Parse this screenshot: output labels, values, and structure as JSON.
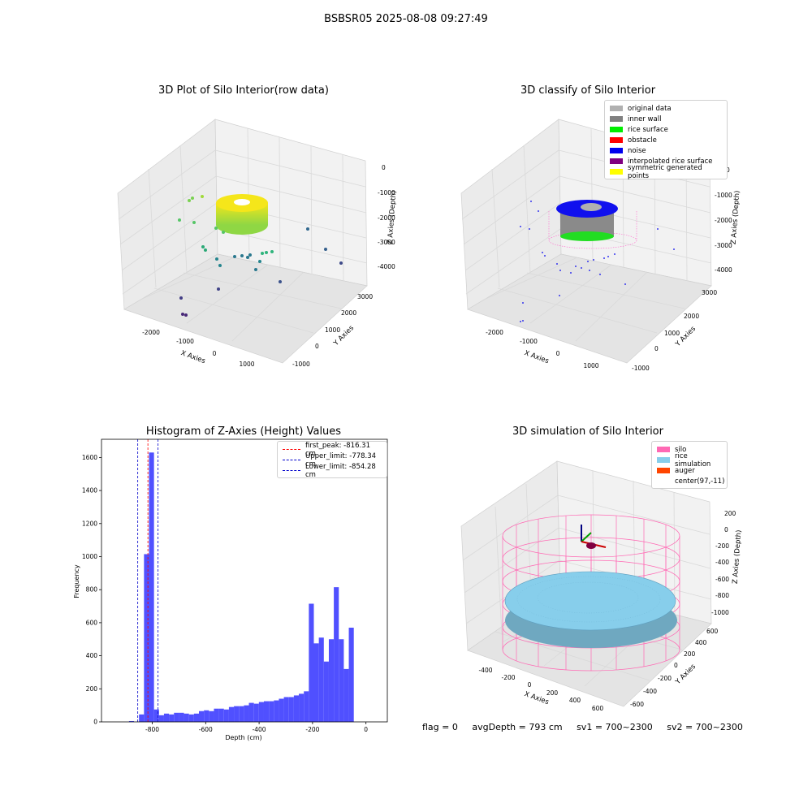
{
  "suptitle": "BSBSR05 2025-08-08 09:27:49",
  "colors": {
    "hist_bar": "#5050ff",
    "peak_line": "#ff0000",
    "limit_line": "#0000cc",
    "pane_wall": "#ebebeb",
    "pane_grid": "#d9d9d9"
  },
  "charts": {
    "raw": {
      "title": "3D Plot of Silo Interior(row data)",
      "xlabel": "X Axies",
      "ylabel": "Y Axies",
      "zlabel": "Z Axies (Depth)",
      "x_ticks": [
        "-2000",
        "-1000",
        "0",
        "1000"
      ],
      "y_ticks": [
        "-1000",
        "0",
        "1000",
        "2000",
        "3000"
      ],
      "z_ticks": [
        "0",
        "-1000",
        "-2000",
        "-3000",
        "-4000"
      ]
    },
    "classify": {
      "title": "3D classify of Silo Interior",
      "xlabel": "X Axies",
      "ylabel": "Y Axies",
      "zlabel": "Z Axies (Depth)",
      "x_ticks": [
        "-2000",
        "-1000",
        "0",
        "1000"
      ],
      "y_ticks": [
        "-1000",
        "0",
        "1000",
        "2000",
        "3000"
      ],
      "z_ticks": [
        "0",
        "-1000",
        "-2000",
        "-3000",
        "-4000"
      ],
      "legend": [
        {
          "label": "original data",
          "color": "#b0b0b0"
        },
        {
          "label": "inner wall",
          "color": "#808080"
        },
        {
          "label": "rice surface",
          "color": "#00ee00"
        },
        {
          "label": "obstacle",
          "color": "#ff0000"
        },
        {
          "label": "noise",
          "color": "#0000ee"
        },
        {
          "label": "interpolated rice surface",
          "color": "#800080"
        },
        {
          "label": "symmetric generated points",
          "color": "#ffff00"
        }
      ]
    },
    "simulation": {
      "title": "3D simulation of Silo Interior",
      "xlabel": "X Axies",
      "ylabel": "Y Axies",
      "zlabel": "Z Axies (Depth)",
      "x_ticks": [
        "-400",
        "-200",
        "0",
        "200",
        "400",
        "600"
      ],
      "y_ticks": [
        "-600",
        "-400",
        "-200",
        "0",
        "200",
        "400",
        "600"
      ],
      "z_ticks": [
        "200",
        "0",
        "-200",
        "-400",
        "-600",
        "-800",
        "-1000"
      ],
      "legend": [
        {
          "label": "silo",
          "color": "#ff69b4"
        },
        {
          "label": "rice simulation",
          "color": "#87ceeb"
        },
        {
          "label": "auger",
          "color": "#ff4500"
        },
        {
          "label": "center(97,-11)",
          "color": ""
        }
      ]
    }
  },
  "chart_data": {
    "type": "bar",
    "title": "Histogram of Z-Axies (Height) Values",
    "xlabel": "Depth (cm)",
    "ylabel": "Frequency",
    "xlim": [
      -990,
      80
    ],
    "ylim": [
      0,
      1710
    ],
    "x_ticks": [
      -800,
      -600,
      -400,
      -200,
      0
    ],
    "y_ticks": [
      0,
      200,
      400,
      600,
      800,
      1000,
      1200,
      1400,
      1600
    ],
    "bin_width": 18.7,
    "bin_starts": [
      -887,
      -868.3,
      -849.6,
      -830.9,
      -812.2,
      -793.5,
      -774.8,
      -756.1,
      -737.4,
      -718.7,
      -700,
      -681.3,
      -662.6,
      -643.9,
      -625.2,
      -606.5,
      -587.8,
      -569.1,
      -550.4,
      -531.7,
      -513,
      -494.3,
      -475.6,
      -456.9,
      -438.2,
      -419.5,
      -400.8,
      -382.1,
      -363.4,
      -344.7,
      -326,
      -307.3,
      -288.6,
      -269.9,
      -251.2,
      -232.5,
      -213.8,
      -195.1,
      -176.4,
      -157.7,
      -139,
      -120.3,
      -101.6,
      -82.9,
      -64.2,
      -45.5,
      -26.8,
      -8.1
    ],
    "values": [
      5,
      0,
      45,
      1015,
      1630,
      75,
      40,
      50,
      45,
      55,
      55,
      50,
      45,
      50,
      65,
      70,
      65,
      80,
      80,
      75,
      90,
      95,
      95,
      100,
      115,
      110,
      120,
      125,
      125,
      130,
      140,
      150,
      150,
      160,
      170,
      185,
      715,
      475,
      510,
      365,
      500,
      815,
      500,
      320,
      570,
      0,
      0,
      0
    ],
    "vlines": [
      {
        "label": "first_peak: -816.31 cm",
        "x": -816.31,
        "color": "#ff0000"
      },
      {
        "label": "Upper_limit: -778.34 cm",
        "x": -778.34,
        "color": "#0000cc"
      },
      {
        "label": "Lower_limit: -854.28 cm",
        "x": -854.28,
        "color": "#0000cc"
      }
    ]
  },
  "footer": {
    "flag": "flag = 0",
    "avg_depth": "avgDepth = 793 cm",
    "sv1": "sv1 = 700~2300",
    "sv2": "sv2 = 700~2300"
  }
}
